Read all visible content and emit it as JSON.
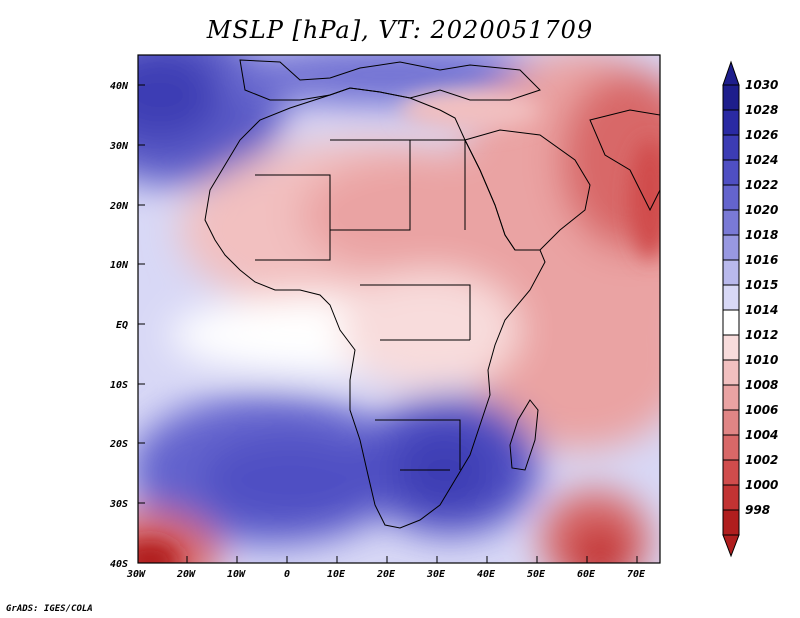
{
  "title": "MSLP [hPa], VT: 2020051709",
  "credit": "GrADS: IGES/COLA",
  "map": {
    "lat_labels": [
      "40N",
      "30N",
      "20N",
      "10N",
      "EQ",
      "10S",
      "20S",
      "30S",
      "40S"
    ],
    "lon_labels": [
      "30W",
      "20W",
      "10W",
      "0",
      "10E",
      "20E",
      "30E",
      "40E",
      "50E",
      "60E",
      "70E"
    ]
  },
  "colorbar": {
    "levels": [
      "1030",
      "1028",
      "1026",
      "1024",
      "1022",
      "1020",
      "1018",
      "1016",
      "1015",
      "1014",
      "1012",
      "1010",
      "1008",
      "1006",
      "1004",
      "1002",
      "1000",
      "998"
    ],
    "colors": [
      "#1e1e8c",
      "#2a2aa3",
      "#3c3cb4",
      "#4f4fc3",
      "#6464cd",
      "#7a7ad6",
      "#9898e1",
      "#b9b9ec",
      "#d8d8f6",
      "#ffffff",
      "#f8dcdc",
      "#f2c0c0",
      "#eaa3a3",
      "#e08585",
      "#d86868",
      "#d04c4c",
      "#c23333",
      "#b01e1e"
    ],
    "top_color": "#1e1e8c",
    "bottom_color": "#b01e1e"
  },
  "colors": {
    "ocean_north_high": "#4f4fc3",
    "south_high": "#5c5cc8",
    "africa_low": "#f2c0c0",
    "arabia_low": "#e08585"
  }
}
